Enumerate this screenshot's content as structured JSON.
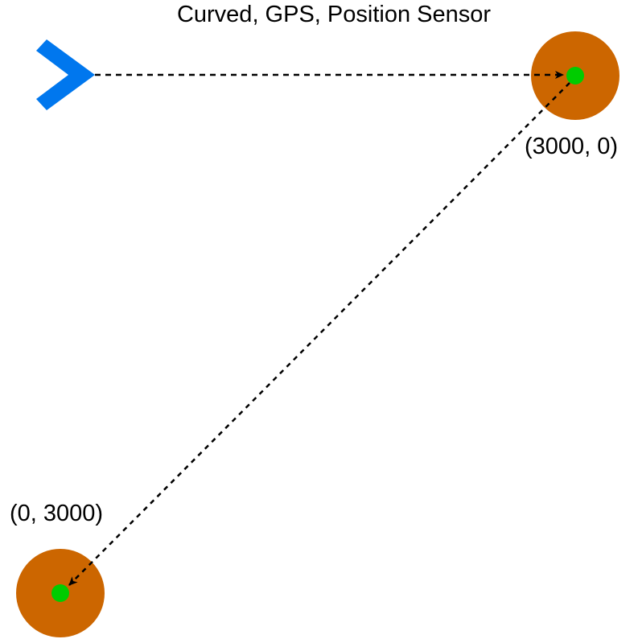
{
  "title": "Curved, GPS, Position Sensor",
  "colors": {
    "robot": "#0077ee",
    "waypoint_ring": "#cc6600",
    "waypoint_center": "#00cc00",
    "path": "#000000"
  },
  "robot": {
    "icon": "chevron-robot-icon"
  },
  "waypoints": [
    {
      "label": "(3000, 0)"
    },
    {
      "label": "(0, 3000)"
    }
  ],
  "path": {
    "style": "dashed",
    "arrowheads": true
  }
}
